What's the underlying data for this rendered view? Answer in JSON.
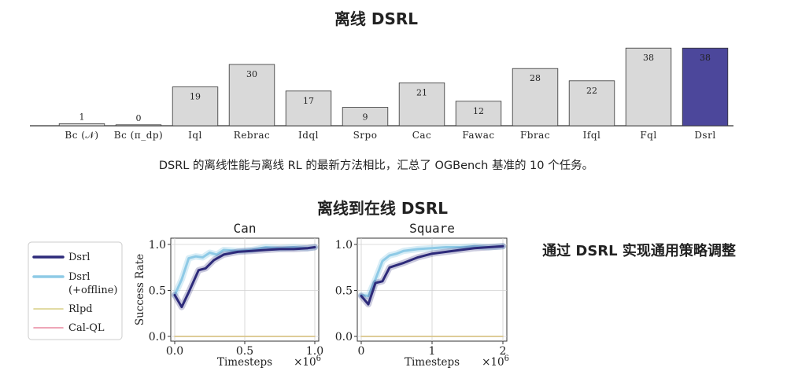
{
  "top_title": "离线 DSRL",
  "top_caption": "DSRL 的离线性能与离线 RL 的最新方法相比，汇总了 OGBench 基准的 10 个任务。",
  "bottom_title": "离线到在线 DSRL",
  "side_caption": "通过 DSRL 实现通用策略调整",
  "legend": [
    {
      "line1": "Dsrl",
      "line2": "",
      "color": "#2d2a7a"
    },
    {
      "line1": "Dsrl",
      "line2": "(+offline)",
      "color": "#8ecae6"
    },
    {
      "line1": "Rlpd",
      "line2": "",
      "color": "#d8cf86"
    },
    {
      "line1": "Cal-QL",
      "line2": "",
      "color": "#e889a0"
    }
  ],
  "colors": {
    "bar_default": "#d9d9d9",
    "bar_highlight": "#4c479b",
    "bar_stroke": "#333333"
  },
  "chart_data": [
    {
      "type": "bar",
      "categories": [
        "Bc (𝒩)",
        "Bc (π_dp)",
        "Iql",
        "Rebrac",
        "Idql",
        "Srpo",
        "Cac",
        "Fawac",
        "Fbrac",
        "Ifql",
        "Fql",
        "Dsrl"
      ],
      "values": [
        1,
        0,
        19,
        30,
        17,
        9,
        21,
        12,
        28,
        22,
        38,
        38
      ],
      "highlight_index": 11,
      "ylim": [
        0,
        40
      ],
      "title": "",
      "xlabel": "",
      "ylabel": ""
    },
    {
      "type": "line",
      "title": "Can",
      "xlabel": "Timesteps",
      "ylabel": "Success Rate",
      "x_multiplier": "×10^6",
      "xlim": [
        0,
        1.0
      ],
      "ylim": [
        0,
        1.0
      ],
      "xticks": [
        "0.0",
        "0.5",
        "1.0"
      ],
      "xtick_values": [
        0,
        0.5,
        1.0
      ],
      "yticks": [
        "0.0",
        "0.5",
        "1.0"
      ],
      "ytick_values": [
        0,
        0.5,
        1.0
      ],
      "grid": true,
      "series": [
        {
          "style": 0,
          "x": [
            0,
            0.05,
            0.1,
            0.17,
            0.22,
            0.28,
            0.35,
            0.45,
            0.55,
            0.65,
            0.75,
            0.85,
            0.95,
            1.0
          ],
          "y": [
            0.45,
            0.32,
            0.48,
            0.72,
            0.74,
            0.83,
            0.89,
            0.92,
            0.93,
            0.94,
            0.95,
            0.95,
            0.96,
            0.97
          ]
        },
        {
          "style": 1,
          "x": [
            0,
            0.05,
            0.1,
            0.15,
            0.2,
            0.25,
            0.3,
            0.35,
            0.45,
            0.55,
            0.65,
            0.75,
            0.85,
            0.95,
            1.0
          ],
          "y": [
            0.45,
            0.62,
            0.85,
            0.87,
            0.86,
            0.91,
            0.89,
            0.94,
            0.93,
            0.94,
            0.97,
            0.96,
            0.97,
            0.96,
            0.97
          ]
        },
        {
          "style": 2,
          "x": [
            0,
            1.0
          ],
          "y": [
            0.0,
            0.0
          ]
        },
        {
          "style": 3,
          "x": [
            0,
            1.0
          ],
          "y": [
            0.0,
            0.0
          ]
        }
      ]
    },
    {
      "type": "line",
      "title": "Square",
      "xlabel": "Timesteps",
      "ylabel": "",
      "x_multiplier": "×10^6",
      "xlim": [
        0,
        2
      ],
      "ylim": [
        0,
        1.0
      ],
      "xticks": [
        "0",
        "1",
        "2"
      ],
      "xtick_values": [
        0,
        1,
        2
      ],
      "yticks": [
        "0.0",
        "0.5",
        "1.0"
      ],
      "ytick_values": [
        0,
        0.5,
        1.0
      ],
      "grid": true,
      "series": [
        {
          "style": 0,
          "x": [
            0,
            0.1,
            0.2,
            0.3,
            0.4,
            0.6,
            0.8,
            1.0,
            1.2,
            1.4,
            1.6,
            1.8,
            2.0
          ],
          "y": [
            0.44,
            0.35,
            0.58,
            0.6,
            0.75,
            0.8,
            0.86,
            0.9,
            0.92,
            0.94,
            0.96,
            0.97,
            0.98
          ]
        },
        {
          "style": 1,
          "x": [
            0,
            0.1,
            0.2,
            0.3,
            0.4,
            0.5,
            0.6,
            0.8,
            1.0,
            1.2,
            1.4,
            1.6,
            1.8,
            2.0
          ],
          "y": [
            0.45,
            0.44,
            0.62,
            0.82,
            0.88,
            0.9,
            0.93,
            0.95,
            0.96,
            0.97,
            0.97,
            0.98,
            0.97,
            0.98
          ]
        },
        {
          "style": 2,
          "x": [
            0,
            2
          ],
          "y": [
            0.0,
            0.0
          ]
        },
        {
          "style": 3,
          "x": [
            0,
            2
          ],
          "y": [
            0.0,
            0.0
          ]
        }
      ]
    }
  ]
}
